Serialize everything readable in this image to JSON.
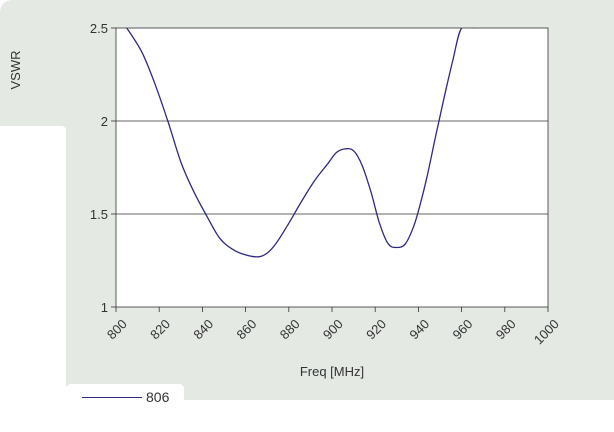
{
  "colors": {
    "panel_bg": "#e4e9e4",
    "plot_bg": "#ffffff",
    "series_line": "#2e2a7f",
    "grid": "#333333"
  },
  "chart_data": {
    "type": "line",
    "title": "",
    "xlabel": "Freq [MHz]",
    "ylabel": "VSWR",
    "xlim": [
      800,
      1000
    ],
    "ylim": [
      1,
      2.5
    ],
    "x_ticks": [
      "800",
      "820",
      "840",
      "860",
      "880",
      "900",
      "920",
      "940",
      "960",
      "980",
      "1000"
    ],
    "y_ticks": [
      "1",
      "1.5",
      "2",
      "2.5"
    ],
    "grid": "horizontal",
    "legend_position": "bottom-left",
    "series": [
      {
        "name": "806",
        "x": [
          805,
          812,
          818,
          824,
          830,
          836,
          842,
          848,
          854,
          860,
          866,
          870,
          874,
          880,
          886,
          892,
          898,
          902,
          906,
          910,
          914,
          918,
          922,
          926,
          930,
          934,
          938,
          941,
          944,
          948,
          952,
          956,
          960,
          966
        ],
        "y": [
          2.5,
          2.37,
          2.2,
          2.0,
          1.78,
          1.62,
          1.49,
          1.37,
          1.31,
          1.28,
          1.27,
          1.29,
          1.34,
          1.45,
          1.57,
          1.68,
          1.77,
          1.83,
          1.85,
          1.84,
          1.76,
          1.62,
          1.45,
          1.34,
          1.32,
          1.34,
          1.44,
          1.56,
          1.7,
          1.92,
          2.13,
          2.33,
          2.5,
          2.5
        ]
      }
    ]
  }
}
